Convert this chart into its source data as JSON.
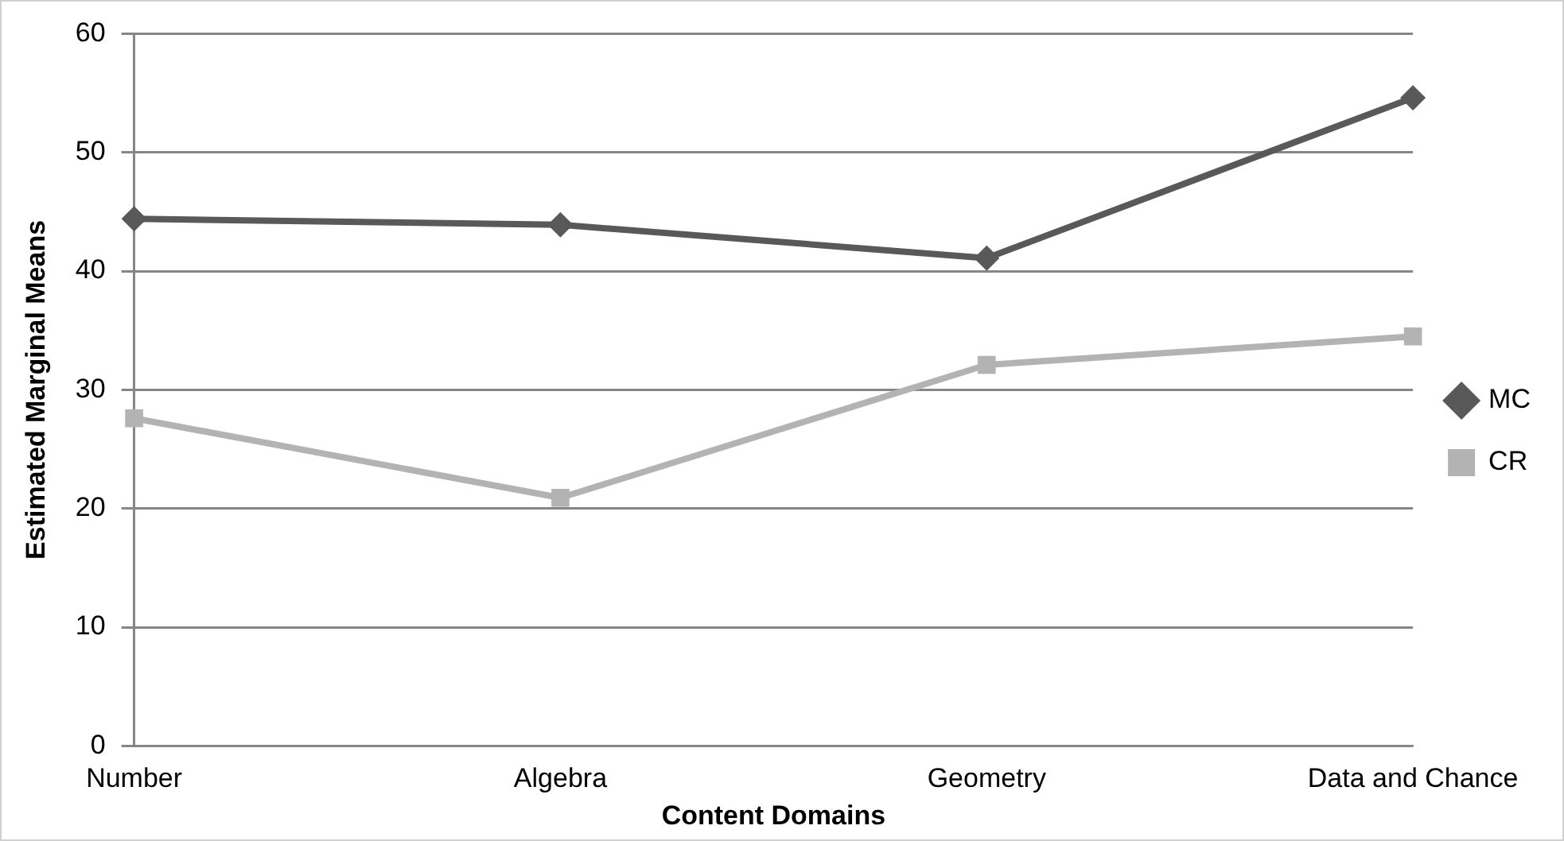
{
  "chart_data": {
    "type": "line",
    "xlabel": "Content Domains",
    "ylabel": "Estimated Marginal Means",
    "categories": [
      "Number",
      "Algebra",
      "Geometry",
      "Data and Chance"
    ],
    "series": [
      {
        "name": "MC",
        "color": "#595959",
        "values": [
          44.4,
          43.9,
          41.1,
          54.6
        ],
        "marker": "diamond"
      },
      {
        "name": "CR",
        "color": "#b3b3b3",
        "values": [
          27.6,
          20.9,
          32.1,
          34.5
        ],
        "marker": "square"
      }
    ],
    "ylim": [
      0,
      60
    ],
    "yticks": [
      0,
      10,
      20,
      30,
      40,
      50,
      60
    ],
    "grid": "y",
    "legend": "right",
    "line_style": "solid"
  }
}
